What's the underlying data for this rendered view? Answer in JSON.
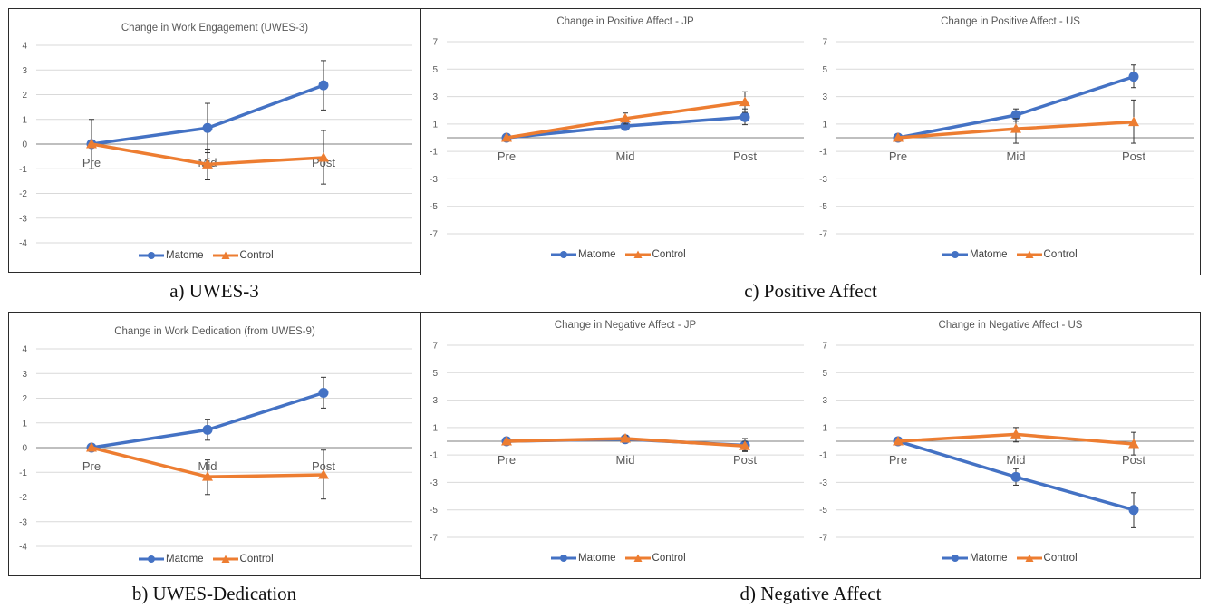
{
  "captions": {
    "a": "a) UWES-3",
    "b": "b) UWES-Dedication",
    "c": "c) Positive Affect",
    "d": "d) Negative Affect"
  },
  "legend": {
    "matome": "Matome",
    "control": "Control"
  },
  "colors": {
    "matome": "#4472C4",
    "control": "#ED7D31",
    "axis": "#7f7f7f",
    "grid": "#d9d9d9",
    "text": "#595959"
  },
  "chart_data": [
    {
      "id": "uwes3",
      "type": "line",
      "title": "Change in Work Engagement (UWES-3)",
      "categories": [
        "Pre",
        "Mid",
        "Post"
      ],
      "ylim": [
        -4,
        4
      ],
      "yticks": [
        4,
        3,
        2,
        1,
        0,
        -1,
        -2,
        -3,
        -4
      ],
      "grid": true,
      "legend_position": "bottom",
      "series": [
        {
          "name": "Matome",
          "marker": "circle",
          "values": [
            0,
            0.65,
            2.38
          ],
          "err_low": [
            -1,
            -0.35,
            1.38
          ],
          "err_high": [
            1,
            1.65,
            3.38
          ]
        },
        {
          "name": "Control",
          "marker": "triangle",
          "values": [
            0,
            -0.82,
            -0.55
          ],
          "err_low": [
            0,
            -1.45,
            -1.62
          ],
          "err_high": [
            0,
            -0.2,
            0.55
          ]
        }
      ]
    },
    {
      "id": "dedication",
      "type": "line",
      "title": "Change in Work Dedication (from UWES-9)",
      "categories": [
        "Pre",
        "Mid",
        "Post"
      ],
      "ylim": [
        -4,
        4
      ],
      "yticks": [
        4,
        3,
        2,
        1,
        0,
        -1,
        -2,
        -3,
        -4
      ],
      "grid": true,
      "legend_position": "bottom",
      "series": [
        {
          "name": "Matome",
          "marker": "circle",
          "values": [
            0,
            0.72,
            2.22
          ],
          "err_low": [
            0,
            0.3,
            1.6
          ],
          "err_high": [
            0,
            1.15,
            2.85
          ]
        },
        {
          "name": "Control",
          "marker": "triangle",
          "values": [
            0,
            -1.18,
            -1.1
          ],
          "err_low": [
            0,
            -1.9,
            -2.08
          ],
          "err_high": [
            0,
            -0.5,
            -0.1
          ]
        }
      ]
    },
    {
      "id": "pa_jp",
      "type": "line",
      "title": "Change in Positive Affect - JP",
      "categories": [
        "Pre",
        "Mid",
        "Post"
      ],
      "ylim": [
        -7,
        7
      ],
      "yticks": [
        7,
        5,
        3,
        1,
        -1,
        -3,
        -5,
        -7
      ],
      "grid": true,
      "legend_position": "bottom",
      "series": [
        {
          "name": "Matome",
          "marker": "circle",
          "values": [
            0,
            0.85,
            1.5
          ],
          "err_low": [
            0,
            0.6,
            0.95
          ],
          "err_high": [
            0,
            1.1,
            2.1
          ]
        },
        {
          "name": "Control",
          "marker": "triangle",
          "values": [
            0,
            1.4,
            2.6
          ],
          "err_low": [
            0,
            1.0,
            1.85
          ],
          "err_high": [
            0,
            1.8,
            3.35
          ]
        }
      ]
    },
    {
      "id": "pa_us",
      "type": "line",
      "title": "Change in Positive Affect - US",
      "categories": [
        "Pre",
        "Mid",
        "Post"
      ],
      "ylim": [
        -7,
        7
      ],
      "yticks": [
        7,
        5,
        3,
        1,
        -1,
        -3,
        -5,
        -7
      ],
      "grid": true,
      "legend_position": "bottom",
      "series": [
        {
          "name": "Matome",
          "marker": "circle",
          "values": [
            0,
            1.65,
            4.45
          ],
          "err_low": [
            0,
            1.2,
            3.65
          ],
          "err_high": [
            0,
            2.1,
            5.3
          ]
        },
        {
          "name": "Control",
          "marker": "triangle",
          "values": [
            0,
            0.65,
            1.15
          ],
          "err_low": [
            0,
            -0.4,
            -0.4
          ],
          "err_high": [
            0,
            1.4,
            2.75
          ]
        }
      ]
    },
    {
      "id": "na_jp",
      "type": "line",
      "title": "Change in Negative Affect - JP",
      "categories": [
        "Pre",
        "Mid",
        "Post"
      ],
      "ylim": [
        -7,
        7
      ],
      "yticks": [
        7,
        5,
        3,
        1,
        -1,
        -3,
        -5,
        -7
      ],
      "grid": true,
      "legend_position": "bottom",
      "series": [
        {
          "name": "Matome",
          "marker": "circle",
          "values": [
            0,
            0.15,
            -0.3
          ],
          "err_low": [
            0,
            -0.1,
            -0.75
          ],
          "err_high": [
            0,
            0.4,
            0.2
          ]
        },
        {
          "name": "Control",
          "marker": "triangle",
          "values": [
            0,
            0.2,
            -0.35
          ],
          "err_low": [
            0,
            0,
            -0.7
          ],
          "err_high": [
            0,
            0.4,
            0.0
          ]
        }
      ]
    },
    {
      "id": "na_us",
      "type": "line",
      "title": "Change in Negative Affect - US",
      "categories": [
        "Pre",
        "Mid",
        "Post"
      ],
      "ylim": [
        -7,
        7
      ],
      "yticks": [
        7,
        5,
        3,
        1,
        -1,
        -3,
        -5,
        -7
      ],
      "grid": true,
      "legend_position": "bottom",
      "series": [
        {
          "name": "Matome",
          "marker": "circle",
          "values": [
            0,
            -2.6,
            -5.0
          ],
          "err_low": [
            0,
            -3.2,
            -6.3
          ],
          "err_high": [
            0,
            -2.0,
            -3.75
          ]
        },
        {
          "name": "Control",
          "marker": "triangle",
          "values": [
            0,
            0.5,
            -0.2
          ],
          "err_low": [
            0,
            -0.05,
            -1.0
          ],
          "err_high": [
            0,
            1.0,
            0.65
          ]
        }
      ]
    }
  ]
}
